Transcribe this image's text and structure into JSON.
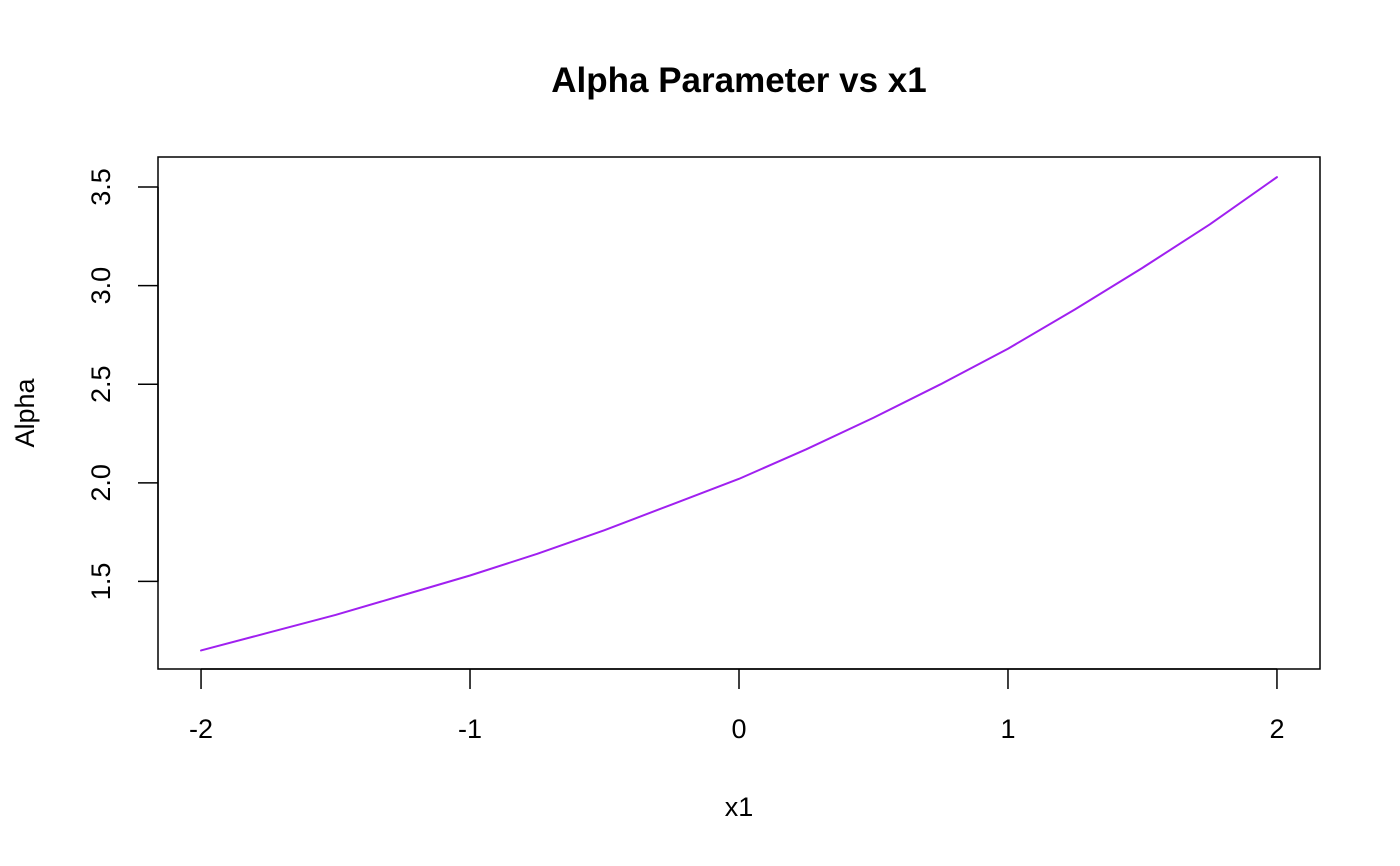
{
  "chart_data": {
    "type": "line",
    "title": "Alpha Parameter vs x1",
    "xlabel": "x1",
    "ylabel": "Alpha",
    "xlim": [
      -2.16,
      2.16
    ],
    "ylim": [
      1.056,
      3.652
    ],
    "x_ticks": [
      -2,
      -1,
      0,
      1,
      2
    ],
    "x_tick_labels": [
      "-2",
      "-1",
      "0",
      "1",
      "2"
    ],
    "y_ticks": [
      1.5,
      2.0,
      2.5,
      3.0,
      3.5
    ],
    "y_tick_labels": [
      "1.5",
      "2.0",
      "2.5",
      "3.0",
      "3.5"
    ],
    "grid": false,
    "legend": "none",
    "series": [
      {
        "color": "#A020F0",
        "x": [
          -2.0,
          -1.75,
          -1.5,
          -1.25,
          -1.0,
          -0.75,
          -0.5,
          -0.25,
          0.0,
          0.25,
          0.5,
          0.75,
          1.0,
          1.25,
          1.5,
          1.75,
          2.0
        ],
        "y": [
          1.15,
          1.24,
          1.33,
          1.43,
          1.53,
          1.64,
          1.76,
          1.89,
          2.02,
          2.17,
          2.33,
          2.5,
          2.68,
          2.88,
          3.09,
          3.31,
          3.55
        ]
      }
    ]
  }
}
